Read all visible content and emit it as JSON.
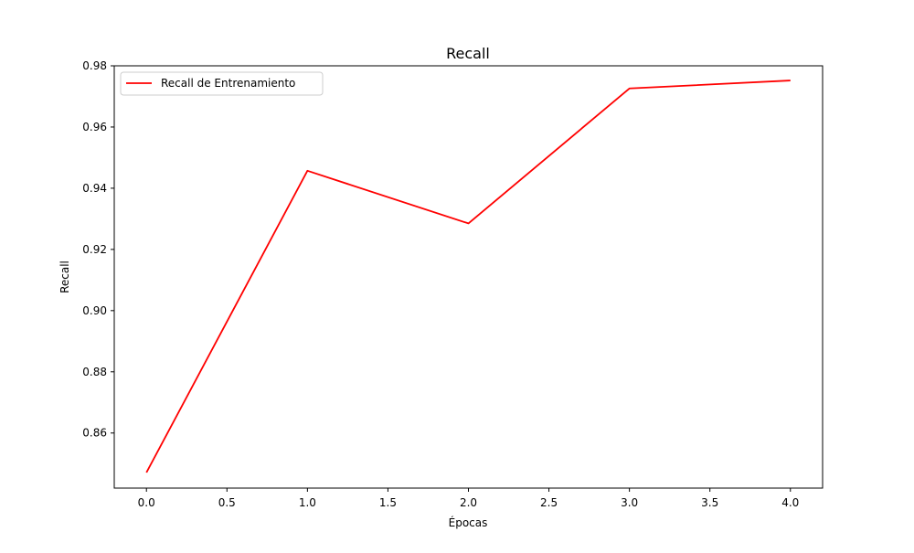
{
  "chart_data": {
    "type": "line",
    "title": "Recall",
    "xlabel": "Épocas",
    "ylabel": "Recall",
    "x": [
      0,
      1,
      2,
      3,
      4
    ],
    "series": [
      {
        "name": "Recall de Entrenamiento",
        "color": "#ff0000",
        "values": [
          0.8471,
          0.9457,
          0.9285,
          0.9726,
          0.9752
        ]
      }
    ],
    "xlim": [
      -0.2,
      4.2
    ],
    "ylim": [
      0.842,
      0.98
    ],
    "xticks": [
      0.0,
      0.5,
      1.0,
      1.5,
      2.0,
      2.5,
      3.0,
      3.5,
      4.0
    ],
    "xtick_labels": [
      "0.0",
      "0.5",
      "1.0",
      "1.5",
      "2.0",
      "2.5",
      "3.0",
      "3.5",
      "4.0"
    ],
    "yticks": [
      0.86,
      0.88,
      0.9,
      0.92,
      0.94,
      0.96,
      0.98
    ],
    "ytick_labels": [
      "0.86",
      "0.88",
      "0.90",
      "0.92",
      "0.94",
      "0.96",
      "0.98"
    ],
    "grid": false,
    "legend_position": "upper left"
  }
}
